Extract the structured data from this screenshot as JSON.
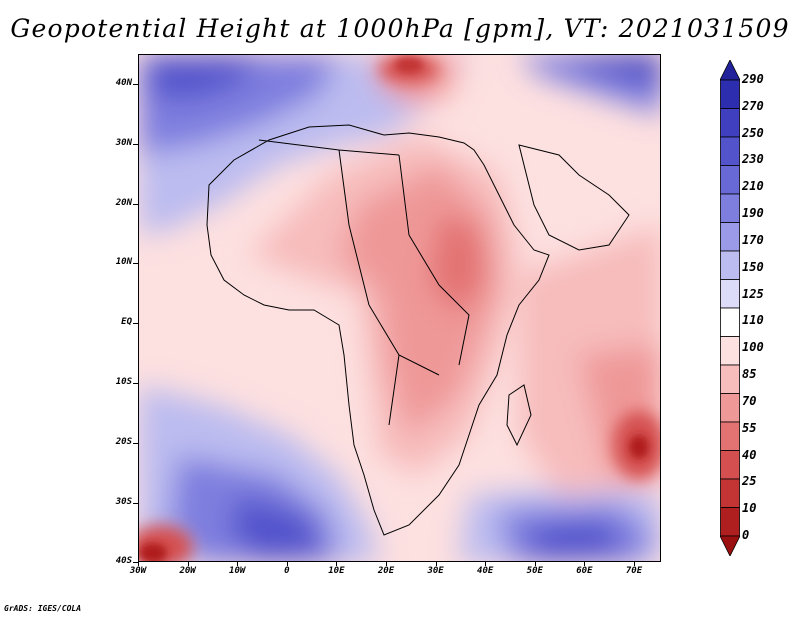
{
  "title": "Geopotential Height at 1000hPa [gpm], VT: 2021031509",
  "map": {
    "region": "Africa",
    "lat_labels": [
      "40N",
      "30N",
      "20N",
      "10N",
      "EQ",
      "10S",
      "20S",
      "30S",
      "40S"
    ],
    "lon_labels": [
      "30W",
      "20W",
      "10W",
      "0",
      "10E",
      "20E",
      "30E",
      "40E",
      "50E",
      "60E",
      "70E"
    ]
  },
  "colorbar": {
    "labels": [
      "290",
      "270",
      "250",
      "230",
      "210",
      "190",
      "170",
      "150",
      "125",
      "110",
      "100",
      "85",
      "70",
      "55",
      "40",
      "25",
      "10",
      "0"
    ],
    "colors": [
      "#22229a",
      "#2d2db0",
      "#3f3fc0",
      "#5353cc",
      "#6868d6",
      "#7e7edf",
      "#9a9ae8",
      "#bcbcf0",
      "#dcdcf8",
      "#ffffff",
      "#fde0e0",
      "#f7bcbc",
      "#ef9898",
      "#e37272",
      "#d45050",
      "#c33434",
      "#b01f1f",
      "#9a1010"
    ]
  },
  "footer": "GrADS: IGES/COLA"
}
